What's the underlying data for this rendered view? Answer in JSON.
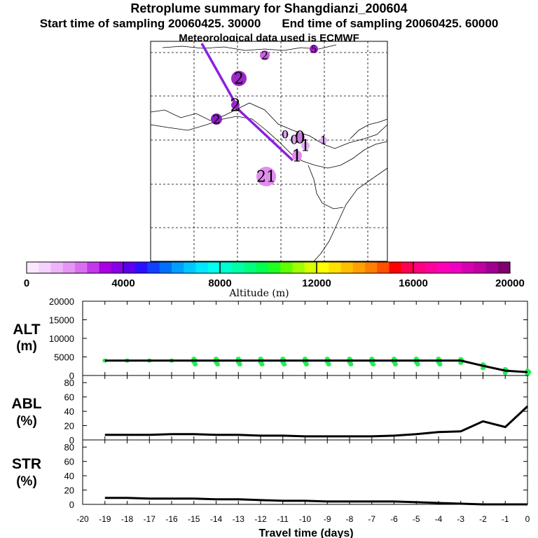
{
  "header": {
    "title": "Retroplume summary for Shangdianzi_200604",
    "start_label": "Start time of sampling 20060425. 30000",
    "end_label": "End time of sampling 20060425. 60000",
    "met_label": "Meteorological data used is ECMWF"
  },
  "map": {
    "clusters": [
      {
        "label": "2",
        "color": "#c860e0"
      },
      {
        "label": "5",
        "color": "#a020c8"
      },
      {
        "label": "2",
        "color": "#9a28c8"
      },
      {
        "label": "2",
        "color": "#8c1ec0"
      },
      {
        "label": "2",
        "color": "#9a28c8"
      },
      {
        "label": "0",
        "color": "#d8a0f0"
      },
      {
        "label": "0",
        "color": "#c87ae0"
      },
      {
        "label": "0",
        "color": "#d8a0f0"
      },
      {
        "label": "1",
        "color": "#e0b0f0"
      },
      {
        "label": "1",
        "color": "#e0b0f0"
      },
      {
        "label": "1",
        "color": "#e088f0"
      },
      {
        "label": "21",
        "color": "#e28cf0"
      }
    ]
  },
  "colorbar": {
    "tick_labels": [
      "0",
      "4000",
      "8000",
      "12000",
      "16000",
      "20000"
    ],
    "label": "Altitude (m)",
    "colors": [
      "#fbe8ff",
      "#f4d2fc",
      "#edb4f8",
      "#e496f4",
      "#da6ef0",
      "#c238ea",
      "#a800e0",
      "#8a00e6",
      "#5c00f0",
      "#2a10ff",
      "#1040ff",
      "#0070ff",
      "#00a0ff",
      "#00c8ff",
      "#00e8ff",
      "#00fff0",
      "#00ffd0",
      "#00ffa8",
      "#00ff80",
      "#00ff50",
      "#20ff20",
      "#60ff00",
      "#a0ff00",
      "#d8ff00",
      "#ffff00",
      "#ffe000",
      "#ffc000",
      "#ffa000",
      "#ff8000",
      "#ff5000",
      "#ff0000",
      "#ff0050",
      "#ff0080",
      "#ff00a0",
      "#ff00b8",
      "#f000c0",
      "#d800b0",
      "#c000a0",
      "#a00090",
      "#800070"
    ]
  },
  "chart_data": [
    {
      "type": "line",
      "name": "ALT",
      "ylabel_line1": "ALT",
      "ylabel_line2": "(m)",
      "yticks": [
        "20000",
        "15000",
        "10000",
        "5000",
        "0"
      ],
      "ylim": [
        0,
        20000
      ],
      "x": [
        -19,
        -18,
        -17,
        -16,
        -15,
        -14,
        -13,
        -12,
        -11,
        -10,
        -9,
        -8,
        -7,
        -6,
        -5,
        -4,
        -3,
        -2,
        -1,
        0
      ],
      "values": [
        4000,
        4000,
        4000,
        4000,
        4000,
        4000,
        4000,
        4000,
        4000,
        4000,
        4000,
        4000,
        4000,
        4000,
        4000,
        4000,
        4000,
        2600,
        1300,
        900
      ],
      "scatter_color": "#22ee55"
    },
    {
      "type": "line",
      "name": "ABL",
      "ylabel_line1": "ABL",
      "ylabel_line2": "(%)",
      "yticks": [
        "80",
        "60",
        "40",
        "20",
        "0"
      ],
      "ylim": [
        0,
        90
      ],
      "x": [
        -19,
        -18,
        -17,
        -16,
        -15,
        -14,
        -13,
        -12,
        -11,
        -10,
        -9,
        -8,
        -7,
        -6,
        -5,
        -4,
        -3,
        -2,
        -1,
        0
      ],
      "values": [
        7,
        7,
        7,
        8,
        8,
        7,
        7,
        6,
        6,
        5,
        5,
        5,
        5,
        6,
        8,
        11,
        12,
        26,
        18,
        47
      ]
    },
    {
      "type": "line",
      "name": "STR",
      "ylabel_line1": "STR",
      "ylabel_line2": "(%)",
      "yticks": [
        "80",
        "60",
        "40",
        "20",
        "0"
      ],
      "ylim": [
        0,
        90
      ],
      "x": [
        -19,
        -18,
        -17,
        -16,
        -15,
        -14,
        -13,
        -12,
        -11,
        -10,
        -9,
        -8,
        -7,
        -6,
        -5,
        -4,
        -3,
        -2,
        -1,
        0
      ],
      "values": [
        9,
        9,
        8,
        8,
        8,
        7,
        7,
        6,
        5,
        5,
        4,
        4,
        4,
        4,
        3,
        2,
        1,
        0,
        0,
        0
      ]
    }
  ],
  "xaxis": {
    "tick_labels": [
      "-20",
      "-19",
      "-18",
      "-17",
      "-16",
      "-15",
      "-14",
      "-13",
      "-12",
      "-11",
      "-10",
      "-9",
      "-8",
      "-7",
      "-6",
      "-5",
      "-4",
      "-3",
      "-2",
      "-1",
      "0"
    ],
    "xlabel": "Travel time (days)"
  }
}
